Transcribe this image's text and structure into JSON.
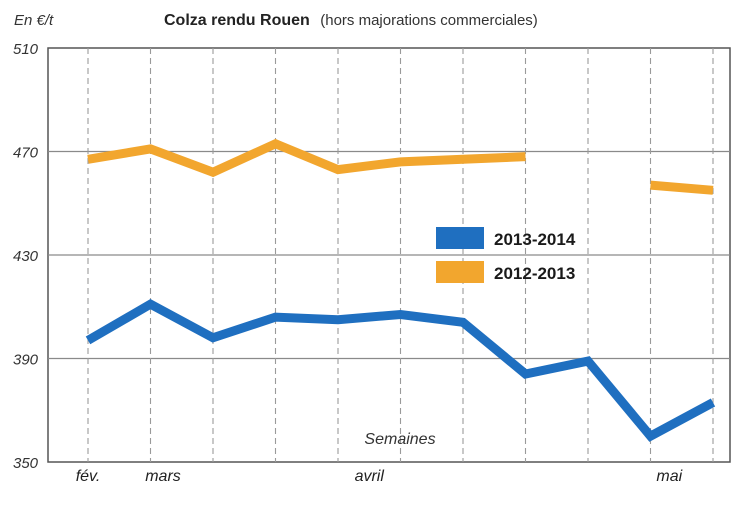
{
  "chart_data": {
    "type": "line",
    "title": "Colza rendu Rouen",
    "subtitle": "(hors majorations commerciales)",
    "ylabel": "En €/t",
    "xlabel": "Semaines",
    "ylim": [
      350,
      510
    ],
    "yticks": [
      350,
      390,
      430,
      470,
      510
    ],
    "x_index_range": [
      0,
      10.6
    ],
    "month_labels": [
      {
        "label": "fév.",
        "x": 0
      },
      {
        "label": "mars",
        "x": 1.2
      },
      {
        "label": "avril",
        "x": 4.5
      },
      {
        "label": "mai",
        "x": 9.3
      }
    ],
    "grid": true,
    "legend_position": "center-right",
    "series": [
      {
        "name": "2013-2014",
        "color": "#1f6fc0",
        "points": [
          [
            0,
            397
          ],
          [
            1,
            411
          ],
          [
            2,
            398
          ],
          [
            3,
            406
          ],
          [
            4,
            405
          ],
          [
            5,
            407
          ],
          [
            6,
            404
          ],
          [
            7,
            384
          ],
          [
            8,
            389
          ],
          [
            9,
            360
          ],
          [
            10,
            373
          ]
        ]
      },
      {
        "name": "2012-2013",
        "color": "#f2a62e",
        "segments": [
          [
            [
              0,
              467
            ],
            [
              1,
              471
            ],
            [
              2,
              462
            ],
            [
              3,
              473
            ],
            [
              4,
              463
            ],
            [
              5,
              466
            ],
            [
              6,
              467
            ],
            [
              7,
              468
            ]
          ],
          [
            [
              9,
              457
            ],
            [
              10,
              455
            ]
          ]
        ]
      }
    ]
  }
}
